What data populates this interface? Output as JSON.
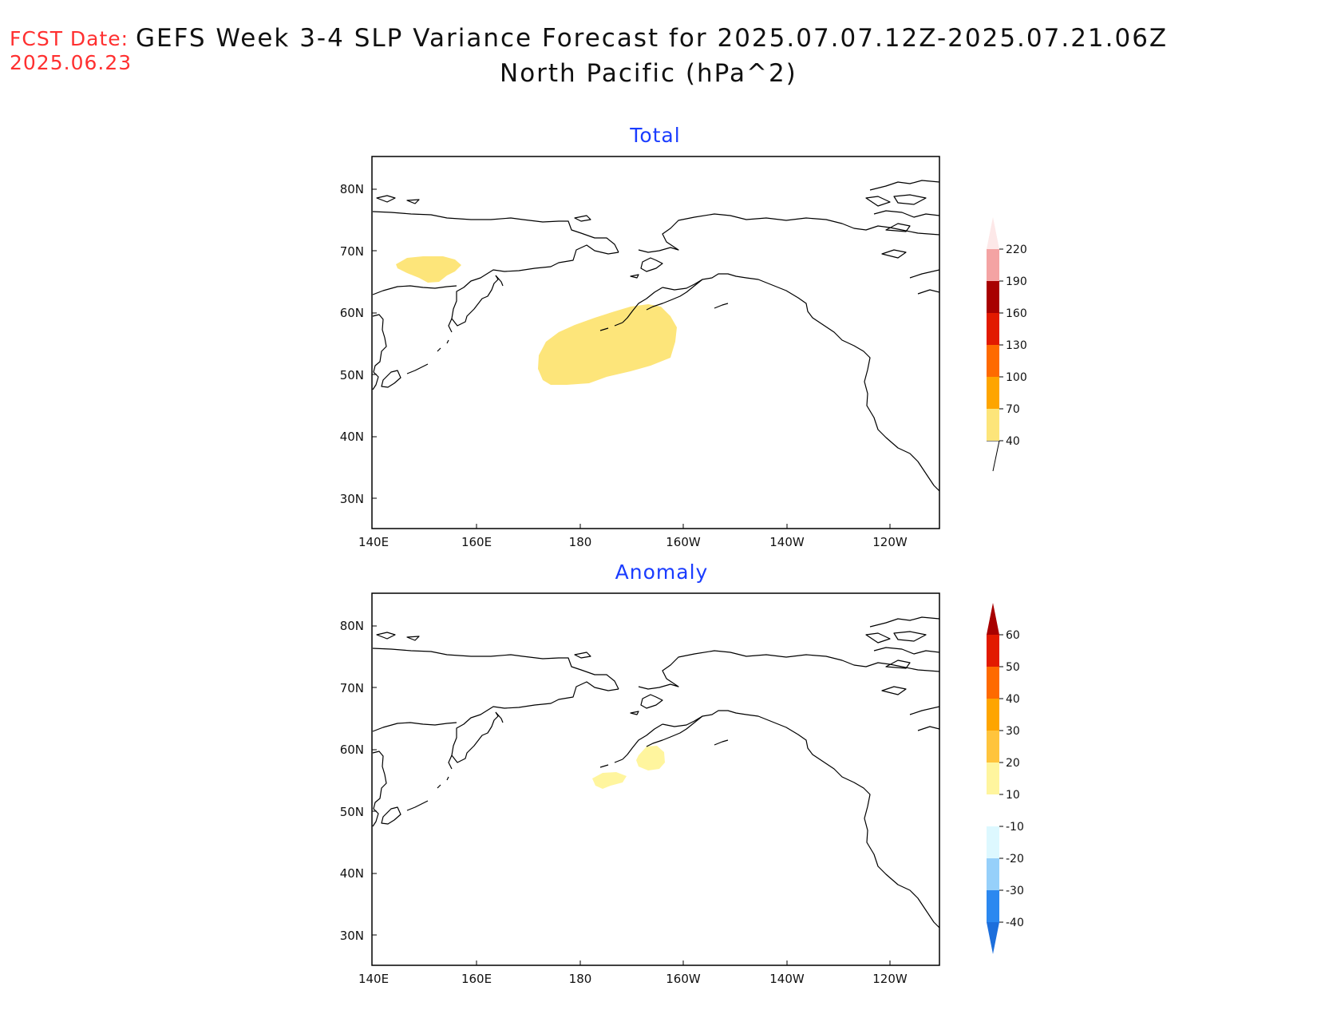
{
  "header": {
    "fcst_label": "FCST Date:",
    "fcst_date": "2025.06.23",
    "title_line1": "GEFS Week 3-4 SLP Variance Forecast for 2025.07.07.12Z-2025.07.21.06Z",
    "title_line2": "North Pacific (hPa^2)"
  },
  "map": {
    "lat_ticks": [
      "80N",
      "70N",
      "60N",
      "50N",
      "40N",
      "30N"
    ],
    "lon_ticks": [
      "140E",
      "160E",
      "180",
      "160W",
      "140W",
      "120W"
    ]
  },
  "chart_data": [
    {
      "type": "heatmap",
      "title": "Total",
      "region": "North Pacific",
      "units": "hPa^2",
      "colorbar": {
        "levels": [
          40,
          70,
          100,
          130,
          160,
          190,
          220
        ],
        "labels": [
          "40",
          "70",
          "100",
          "130",
          "160",
          "190",
          "220"
        ],
        "colors": [
          "#fde57a",
          "#fea500",
          "#fe6a00",
          "#e21a00",
          "#a80000",
          "#f4a3a3",
          "#fcdcdc"
        ],
        "under_color": "#ffffff",
        "over_color": "#fde8e8"
      },
      "features": [
        {
          "name": "east-siberia-area",
          "level_range": "40-70",
          "lon_range": [
            144,
            158
          ],
          "lat_range": [
            65,
            69
          ]
        },
        {
          "name": "bering-aleutian-area",
          "level_range": "40-70",
          "lon_range": [
            173,
            199
          ],
          "lat_range": [
            48,
            61
          ]
        }
      ]
    },
    {
      "type": "heatmap",
      "title": "Anomaly",
      "region": "North Pacific",
      "units": "hPa^2",
      "colorbar": {
        "levels": [
          -40,
          -30,
          -20,
          -10,
          10,
          20,
          30,
          40,
          50,
          60
        ],
        "labels": [
          "-40",
          "-30",
          "-20",
          "-10",
          "10",
          "20",
          "30",
          "40",
          "50",
          "60"
        ],
        "colors": [
          "#1d6fdc",
          "#2b88f0",
          "#96d0fa",
          "#ddf8ff",
          "#ffffff",
          "#fff59e",
          "#ffc43c",
          "#fea500",
          "#fe6a00",
          "#e21a00",
          "#a80000"
        ]
      },
      "features": [
        {
          "name": "bering-anomaly-area-1",
          "level_range": "10-20",
          "lon_range": [
            182,
            186
          ],
          "lat_range": [
            54,
            56
          ]
        },
        {
          "name": "bering-anomaly-area-2",
          "level_range": "10-20",
          "lon_range": [
            191,
            197
          ],
          "lat_range": [
            57,
            60
          ]
        }
      ]
    }
  ]
}
